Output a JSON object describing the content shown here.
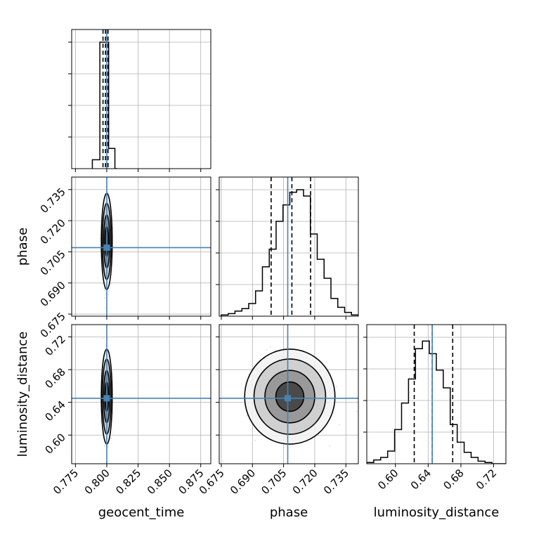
{
  "chart_data": {
    "type": "corner",
    "parameters": [
      "geocent_time",
      "phase",
      "luminosity_distance"
    ],
    "axis_labels": {
      "geocent_time": "geocent_time",
      "phase": "phase",
      "luminosity_distance": "luminosity_distance"
    },
    "injection": {
      "geocent_time": 0.8,
      "phase": 0.707,
      "luminosity_distance": 0.645
    },
    "ranges": {
      "geocent_time": [
        0.772,
        0.883
      ],
      "phase": [
        0.674,
        0.741
      ],
      "luminosity_distance": [
        0.565,
        0.735
      ]
    },
    "ticks": {
      "geocent_time": {
        "values": [
          0.775,
          0.8,
          0.825,
          0.85,
          0.875
        ],
        "labels": [
          "0.775",
          "0.800",
          "0.825",
          "0.850",
          "0.875"
        ]
      },
      "phase": {
        "values": [
          0.675,
          0.69,
          0.705,
          0.72,
          0.735
        ],
        "labels": [
          "0.675",
          "0.690",
          "0.705",
          "0.720",
          "0.735"
        ]
      },
      "luminosity_distance": {
        "values": [
          0.6,
          0.64,
          0.68,
          0.72
        ],
        "labels": [
          "0.60",
          "0.64",
          "0.68",
          "0.72"
        ]
      }
    },
    "histograms": {
      "geocent_time": {
        "edges": [
          0.7885,
          0.7945,
          0.7985,
          0.8015,
          0.8065,
          0.8085
        ],
        "counts": [
          0.07,
          1.0,
          1.0,
          0.16,
          0.0
        ],
        "quantiles": [
          0.797,
          0.799,
          0.801
        ]
      },
      "phase": {
        "bin_width": 0.0033,
        "start": 0.675,
        "counts": [
          0.01,
          0.02,
          0.04,
          0.06,
          0.1,
          0.2,
          0.39,
          0.53,
          0.75,
          0.88,
          0.98,
          1.0,
          0.95,
          0.65,
          0.45,
          0.3,
          0.14,
          0.07,
          0.03,
          0.01
        ],
        "quantiles": [
          0.699,
          0.709,
          0.718
        ]
      },
      "luminosity_distance": {
        "bin_width": 0.0085,
        "start": 0.565,
        "counts": [
          0.01,
          0.03,
          0.05,
          0.1,
          0.27,
          0.48,
          0.67,
          0.91,
          0.97,
          0.87,
          0.74,
          0.6,
          0.31,
          0.17,
          0.09,
          0.05,
          0.02,
          0.01,
          0.0,
          0.0
        ],
        "quantiles": [
          0.623,
          0.645,
          0.67
        ]
      }
    },
    "joint": [
      {
        "x": "geocent_time",
        "y": "phase",
        "center": [
          0.8,
          0.71
        ],
        "sigma": [
          0.0015,
          0.008
        ],
        "contours": [
          0.9,
          1.6,
          2.3,
          2.9
        ]
      },
      {
        "x": "geocent_time",
        "y": "luminosity_distance",
        "center": [
          0.8,
          0.647
        ],
        "sigma": [
          0.0015,
          0.02
        ],
        "contours": [
          0.9,
          1.6,
          2.3,
          2.9
        ]
      },
      {
        "x": "phase",
        "y": "luminosity_distance",
        "center": [
          0.708,
          0.647
        ],
        "sigma": [
          0.0075,
          0.02
        ],
        "contours": [
          0.9,
          1.6,
          2.3,
          2.9
        ]
      }
    ],
    "grid": true,
    "injection_color": "#4682b4",
    "histogram_color": "#000000",
    "scatter_color": "#bdbdbd"
  }
}
